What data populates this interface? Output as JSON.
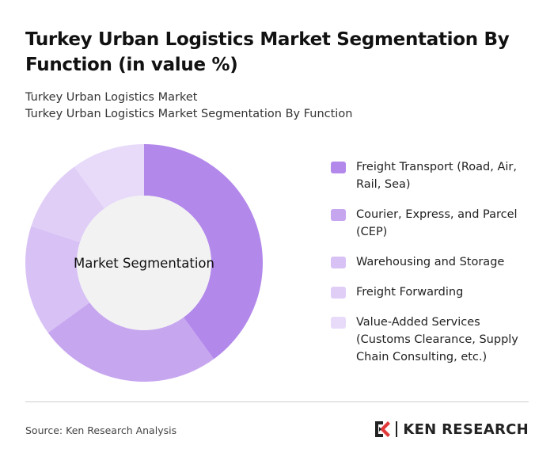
{
  "header": {
    "title": "Turkey Urban Logistics Market Segmentation By Function (in value %)",
    "subtitle_line1": "Turkey Urban Logistics Market",
    "subtitle_line2": "Turkey Urban Logistics Market Segmentation By Function"
  },
  "chart_data": {
    "type": "pie",
    "center_label": "Market Segmentation",
    "categories": [
      "Freight Transport (Road, Air, Rail, Sea)",
      "Courier, Express, and Parcel (CEP)",
      "Warehousing and Storage",
      "Freight Forwarding",
      "Value-Added Services (Customs Clearance, Supply Chain Consulting, etc.)"
    ],
    "values": [
      40,
      25,
      15,
      10,
      10
    ],
    "colors": [
      "#b388eb",
      "#c7a6f0",
      "#d8c2f5",
      "#e0cef7",
      "#e7dbf9"
    ],
    "donut": true
  },
  "footer": {
    "source": "Source: Ken Research Analysis",
    "brand": "KEN RESEARCH"
  }
}
